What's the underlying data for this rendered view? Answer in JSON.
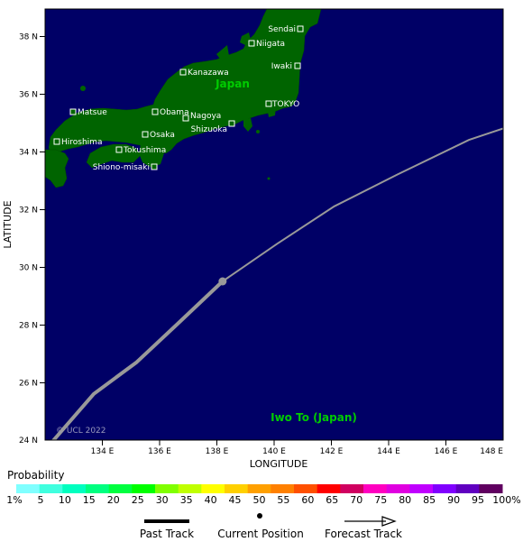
{
  "map": {
    "ocean_color": "#000066",
    "land_color": "#006400",
    "axis_x_label": "LONGITUDE",
    "axis_y_label": "LATITUDE",
    "copyright": "© UCL 2022",
    "x_ticks": [
      "134 E",
      "136 E",
      "138 E",
      "140 E",
      "142 E",
      "144 E",
      "146 E",
      "148 E"
    ],
    "y_ticks": [
      "38 N",
      "36 N",
      "34 N",
      "32 N",
      "30 N",
      "28 N",
      "26 N",
      "24 N"
    ],
    "region_labels": {
      "japan": "Japan",
      "iwo_to": "Iwo To (Japan)"
    },
    "cities": {
      "sendai": "Sendai",
      "niigata": "Niigata",
      "iwaki": "Iwaki",
      "kanazawa": "Kanazawa",
      "tokyo": "TOKYO",
      "matsue": "Matsue",
      "obama": "Obama",
      "nagoya": "Nagoya",
      "shizuoka": "Shizuoka",
      "hiroshima": "Hiroshima",
      "osaka": "Osaka",
      "tokushima": "Tokushima",
      "shiono_misaki": "Shiono-misaki"
    },
    "track": {
      "past_color": "#999999",
      "past_points_lonlat": [
        [
          132.3,
          24.0
        ],
        [
          133.7,
          25.6
        ],
        [
          135.2,
          26.7
        ],
        [
          136.6,
          28.0
        ],
        [
          138.2,
          29.5
        ]
      ],
      "forecast_points_lonlat": [
        [
          138.2,
          29.5
        ],
        [
          140.1,
          30.8
        ],
        [
          142.1,
          32.1
        ],
        [
          144.3,
          33.2
        ],
        [
          146.8,
          34.4
        ],
        [
          148.0,
          34.8
        ]
      ],
      "current_position_lonlat": [
        138.2,
        29.5
      ]
    }
  },
  "legend": {
    "title": "Probability",
    "labels": [
      "1%",
      "5",
      "10",
      "15",
      "20",
      "25",
      "30",
      "35",
      "40",
      "45",
      "50",
      "55",
      "60",
      "65",
      "70",
      "75",
      "80",
      "85",
      "90",
      "95",
      "100%"
    ],
    "colors": [
      "#80ffff",
      "#40ffdf",
      "#00ffbf",
      "#00ff80",
      "#00ff40",
      "#00ff00",
      "#80ff00",
      "#c0ff00",
      "#ffff00",
      "#ffd000",
      "#ffa000",
      "#ff8000",
      "#ff5000",
      "#ff0000",
      "#d00060",
      "#ff00c0",
      "#e000e0",
      "#c000ff",
      "#8000ff",
      "#6000c0",
      "#600060"
    ],
    "key": {
      "past_track": "Past Track",
      "current_position": "Current Position",
      "forecast_track": "Forecast Track"
    }
  }
}
